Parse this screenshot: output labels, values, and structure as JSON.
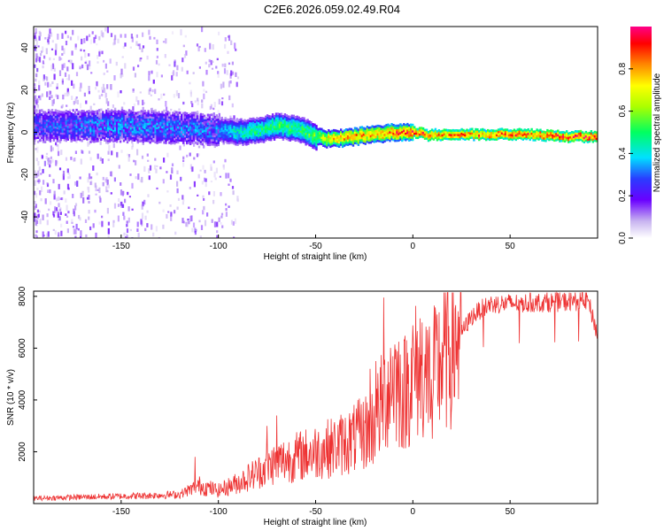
{
  "title": "C2E6.2026.059.02.49.R04",
  "chart_data": [
    {
      "type": "heatmap",
      "xlabel": "Height of straight line (km)",
      "ylabel": "Frequency (Hz)",
      "xlim": [
        -195,
        95
      ],
      "ylim": [
        -50,
        50
      ],
      "xticks": [
        -150,
        -100,
        -50,
        0,
        50
      ],
      "yticks": [
        -40,
        -20,
        0,
        20,
        40
      ],
      "ridge": {
        "x": [
          -195,
          -150,
          -120,
          -100,
          -90,
          -80,
          -75,
          -70,
          -60,
          -55,
          -50,
          -45,
          -40,
          -30,
          -20,
          -10,
          0,
          5,
          8,
          10,
          20,
          40,
          60,
          80,
          95
        ],
        "freq": [
          3,
          3,
          2,
          1,
          0,
          1,
          2,
          3,
          2,
          0,
          -2,
          -3,
          -3,
          -2,
          -1,
          0,
          0,
          0,
          -2,
          -1,
          -1,
          -1,
          -1,
          -2,
          -2
        ],
        "amplitude": [
          0.3,
          0.38,
          0.35,
          0.35,
          0.45,
          0.5,
          0.5,
          0.55,
          0.5,
          0.55,
          0.6,
          0.7,
          0.8,
          0.85,
          0.8,
          0.9,
          0.95,
          0.9,
          0.9,
          0.9,
          0.85,
          0.88,
          0.9,
          0.92,
          0.95
        ]
      }
    },
    {
      "type": "line",
      "xlabel": "Height of straight line (km)",
      "ylabel": "SNR (10 * v/v)",
      "xlim": [
        -195,
        95
      ],
      "ylim": [
        0,
        8200
      ],
      "xticks": [
        -150,
        -100,
        -50,
        0,
        50
      ],
      "yticks": [
        2000,
        4000,
        6000,
        8000
      ],
      "series": [
        {
          "name": "SNR",
          "color": "#ee3333",
          "x": [
            -195,
            -170,
            -140,
            -120,
            -110,
            -100,
            -90,
            -80,
            -70,
            -60,
            -50,
            -40,
            -30,
            -20,
            -15,
            -10,
            -5,
            0,
            5,
            10,
            15,
            20,
            25,
            30,
            35,
            40,
            60,
            80,
            90,
            95
          ],
          "y": [
            200,
            250,
            300,
            350,
            700,
            500,
            800,
            1200,
            1600,
            1800,
            2000,
            2200,
            2500,
            3000,
            4000,
            5000,
            4200,
            5000,
            5300,
            4800,
            5600,
            6200,
            6600,
            7200,
            7500,
            7700,
            7750,
            7800,
            7850,
            6500
          ],
          "spikes": [
            {
              "x": -15,
              "y": 7950
            },
            {
              "x": -19,
              "y": 5500
            },
            {
              "x": -22,
              "y": 5200
            },
            {
              "x": 10,
              "y": 2500
            },
            {
              "x": 7,
              "y": 3500
            },
            {
              "x": -112,
              "y": 1800
            },
            {
              "x": -70,
              "y": 3400
            },
            {
              "x": -75,
              "y": 3000
            }
          ]
        }
      ]
    }
  ],
  "colorbar": {
    "label": "Normalized spectral amplitude",
    "ticks": [
      "0.0",
      "0.2",
      "0.4",
      "0.6",
      "0.8"
    ],
    "tick_values": [
      0,
      0.2,
      0.4,
      0.6,
      0.8
    ],
    "range": [
      0,
      1
    ]
  }
}
